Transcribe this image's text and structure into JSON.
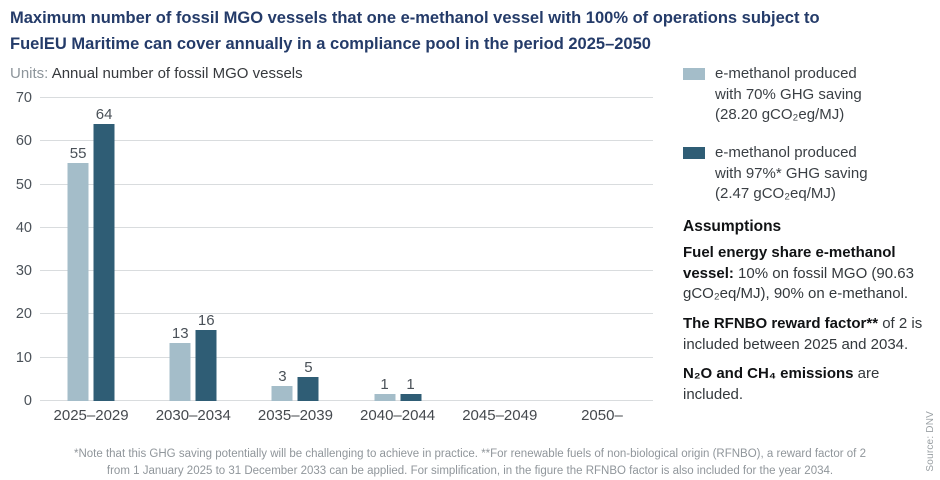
{
  "title": {
    "line1": "Maximum number of fossil MGO vessels that one e-methanol vessel with 100% of operations subject to",
    "line2": "FuelEU Maritime can cover annually in a compliance pool in the period 2025–2050"
  },
  "units": {
    "prefix": "Units: ",
    "text": "Annual number of fossil MGO vessels"
  },
  "chart_data": {
    "type": "bar",
    "categories": [
      "2025–2029",
      "2030–2034",
      "2035–2039",
      "2040–2044",
      "2045–2049",
      "2050–"
    ],
    "series": [
      {
        "name": "e-methanol produced with 70% GHG saving (28.20 gCO₂eg/MJ)",
        "color": "#a4bdc9",
        "values": [
          55,
          13,
          3,
          1,
          0,
          0
        ],
        "plot_values": [
          55,
          13.5,
          3.5,
          1.7,
          0,
          0
        ]
      },
      {
        "name": "e-methanol produced with 97%* GHG saving (2.47 gCO₂eq/MJ)",
        "color": "#2f5d75",
        "values": [
          64,
          16,
          5,
          1,
          0,
          0
        ],
        "plot_values": [
          64,
          16.3,
          5.5,
          1.7,
          0,
          0
        ]
      }
    ],
    "ylabel": "Annual number of fossil MGO vessels",
    "ylim": [
      0,
      70
    ],
    "ytick_step": 10,
    "grid": true,
    "legend_position": "right"
  },
  "legend": {
    "items": [
      {
        "label": "e-methanol produced\nwith 70% GHG saving\n(28.20 gCO₂eg/MJ)"
      },
      {
        "label": "e-methanol produced\nwith 97%* GHG saving\n(2.47 gCO₂eq/MJ)"
      }
    ]
  },
  "assumptions": {
    "title": "Assumptions",
    "items": [
      {
        "bold": "Fuel energy share e-methanol vessel:",
        "rest": " 10% on fossil MGO (90.63 gCO₂eq/MJ), 90% on e-methanol."
      },
      {
        "bold": "The RFNBO reward factor**",
        "rest": " of 2 is included between 2025 and 2034."
      },
      {
        "bold": "N₂O and CH₄ emissions",
        "rest": " are included."
      }
    ]
  },
  "footnote": "*Note that this GHG saving potentially will be challenging to achieve in practice. **For renewable fuels of non-biological origin (RFNBO), a reward factor of 2 from 1 January 2025 to 31 December 2033 can be applied. For simplification, in the figure the RFNBO factor is also included for the year 2034.",
  "source": "Source: DNV"
}
